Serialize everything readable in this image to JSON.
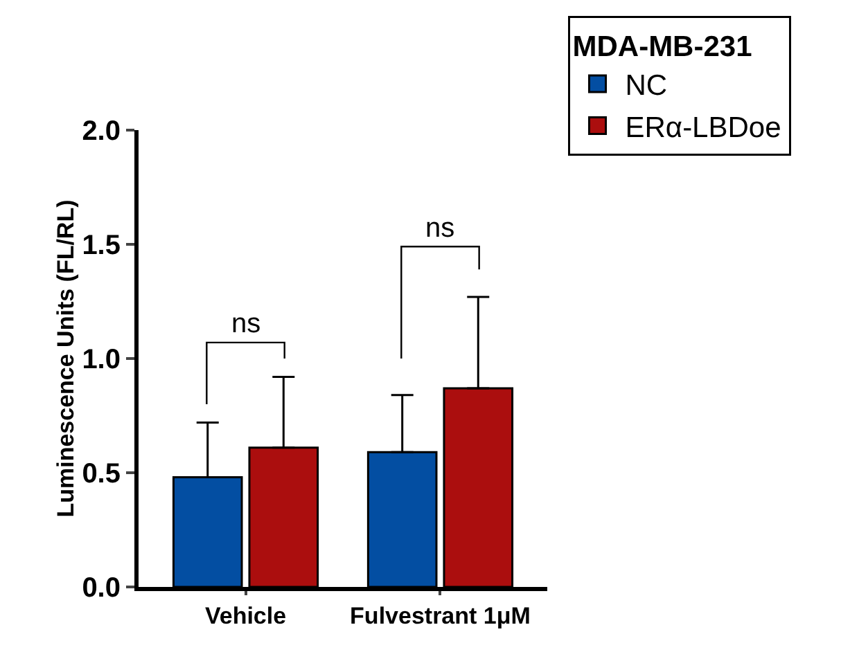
{
  "chart_data": {
    "type": "bar",
    "ylabel": "Luminescence Units (FL/RL)",
    "legend_title": "MDA-MB-231",
    "categories": [
      "Vehicle",
      "Fulvestrant 1μM"
    ],
    "series": [
      {
        "name": "NC",
        "color": "#034ea2",
        "values": [
          0.48,
          0.59
        ],
        "errors": [
          [
            0.48,
            0.72
          ],
          [
            0.59,
            0.84
          ]
        ]
      },
      {
        "name": "ERα-LBDoe",
        "color": "#ab0e0e",
        "values": [
          0.61,
          0.87
        ],
        "errors": [
          [
            0.61,
            0.92
          ],
          [
            0.87,
            1.27
          ]
        ]
      }
    ],
    "ylim": [
      0,
      2
    ],
    "yticks": [
      {
        "value": 0,
        "label": "0.0"
      },
      {
        "value": 0.5,
        "label": "0.5"
      },
      {
        "value": 1,
        "label": "1.0"
      },
      {
        "value": 1.5,
        "label": "1.5"
      },
      {
        "value": 2,
        "label": "2.0"
      }
    ],
    "grid": false,
    "legend": "top right",
    "annotations": [
      "ns",
      "ns"
    ]
  }
}
